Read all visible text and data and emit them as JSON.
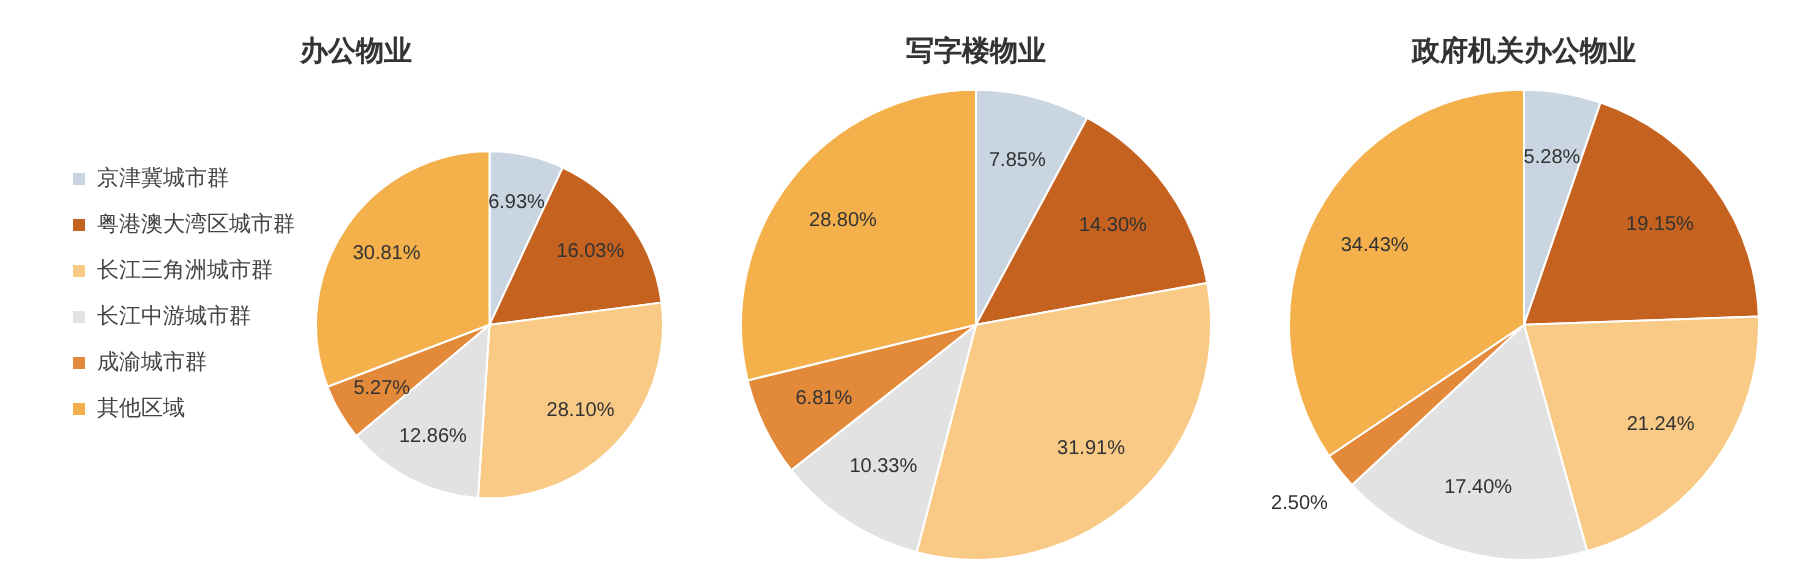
{
  "chart_data": [
    {
      "type": "pie",
      "title": "办公物业",
      "categories": [
        "京津冀城市群",
        "粤港澳大湾区城市群",
        "长江三角洲城市群",
        "长江中游城市群",
        "成渝城市群",
        "其他区域"
      ],
      "values": [
        6.93,
        16.03,
        28.1,
        12.86,
        5.27,
        30.81
      ],
      "value_labels": [
        "6.93%",
        "16.03%",
        "28.10%",
        "12.86%",
        "5.27%",
        "30.81%"
      ],
      "colors": [
        "#c9d5e0",
        "#c5621f",
        "#f8ca86",
        "#e2e2e2",
        "#e3893a",
        "#f3b04b"
      ],
      "legend": "left"
    },
    {
      "type": "pie",
      "title": "写字楼物业",
      "categories": [
        null,
        null,
        null,
        null,
        null,
        null
      ],
      "values": [
        7.85,
        14.3,
        31.91,
        10.33,
        6.81,
        28.8
      ],
      "value_labels": [
        "7.85%",
        "14.30%",
        "31.91%",
        "10.33%",
        "6.81%",
        "28.80%"
      ],
      "colors": [
        "#c9d5e0",
        "#c5621f",
        "#f8ca86",
        "#e2e2e2",
        "#e3893a",
        "#f3b04b"
      ]
    },
    {
      "type": "pie",
      "title": "政府机关办公物业",
      "categories": [
        null,
        null,
        null,
        null,
        null,
        null
      ],
      "values": [
        5.28,
        19.15,
        21.24,
        17.4,
        2.5,
        34.43
      ],
      "value_labels": [
        "5.28%",
        "19.15%",
        "21.24%",
        "17.40%",
        "2.50%",
        "34.43%"
      ],
      "colors": [
        "#c9d5e0",
        "#c5621f",
        "#f8ca86",
        "#e2e2e2",
        "#e3893a",
        "#f3b04b"
      ]
    }
  ]
}
